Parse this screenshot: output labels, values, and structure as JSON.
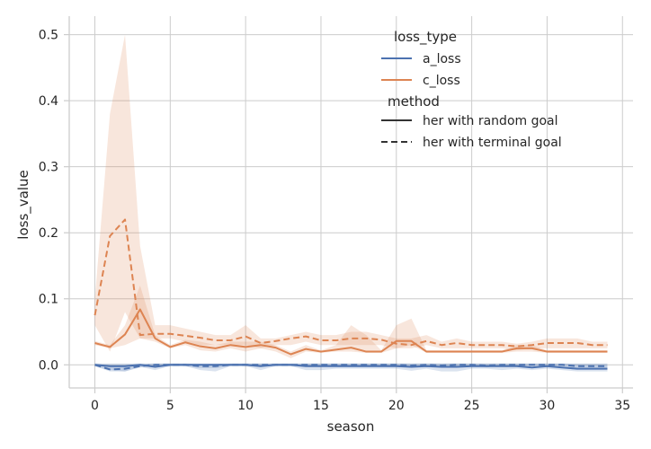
{
  "chart_data": {
    "type": "line",
    "xlabel": "season",
    "ylabel": "loss_value",
    "xlim": [
      -1.7,
      35.7
    ],
    "ylim": [
      -0.035,
      0.528
    ],
    "xticks": [
      0,
      5,
      10,
      15,
      20,
      25,
      30,
      35
    ],
    "yticks": [
      0.0,
      0.1,
      0.2,
      0.3,
      0.4,
      0.5
    ],
    "ytick_labels": [
      "0.0",
      "0.1",
      "0.2",
      "0.3",
      "0.4",
      "0.5"
    ],
    "grid": true,
    "legend_placement": "top-right",
    "legend": {
      "hue_title": "loss_type",
      "hue_entries": [
        {
          "label": "a_loss",
          "color": "#4c72b0"
        },
        {
          "label": "c_loss",
          "color": "#dd8452"
        }
      ],
      "style_title": "method",
      "style_entries": [
        {
          "label": "her with random goal",
          "dash": "solid"
        },
        {
          "label": "her with terminal goal",
          "dash": "dashed"
        }
      ]
    },
    "series": [
      {
        "loss_type": "c_loss",
        "method": "her with terminal goal",
        "color": "#dd8452",
        "dash": "dashed",
        "x": [
          0,
          1,
          2,
          3,
          4,
          5,
          6,
          7,
          8,
          9,
          10,
          11,
          12,
          13,
          14,
          15,
          16,
          17,
          18,
          19,
          20,
          21,
          22,
          23,
          24,
          25,
          26,
          27,
          28,
          29,
          30,
          31,
          32,
          33,
          34
        ],
        "y": [
          0.075,
          0.195,
          0.22,
          0.045,
          0.047,
          0.047,
          0.044,
          0.041,
          0.037,
          0.037,
          0.043,
          0.033,
          0.036,
          0.04,
          0.043,
          0.037,
          0.037,
          0.04,
          0.04,
          0.038,
          0.032,
          0.03,
          0.036,
          0.03,
          0.033,
          0.03,
          0.03,
          0.03,
          0.028,
          0.03,
          0.033,
          0.033,
          0.033,
          0.03,
          0.03
        ],
        "ci_low": [
          0.06,
          0.02,
          0.08,
          0.04,
          0.04,
          0.04,
          0.035,
          0.03,
          0.03,
          0.03,
          0.03,
          0.025,
          0.03,
          0.03,
          0.035,
          0.03,
          0.03,
          0.03,
          0.03,
          0.03,
          0.025,
          0.025,
          0.03,
          0.025,
          0.025,
          0.025,
          0.025,
          0.025,
          0.022,
          0.025,
          0.025,
          0.025,
          0.025,
          0.025,
          0.025
        ],
        "ci_high": [
          0.1,
          0.38,
          0.5,
          0.18,
          0.06,
          0.06,
          0.055,
          0.05,
          0.045,
          0.045,
          0.06,
          0.04,
          0.04,
          0.045,
          0.05,
          0.045,
          0.045,
          0.05,
          0.05,
          0.045,
          0.04,
          0.04,
          0.045,
          0.035,
          0.04,
          0.035,
          0.035,
          0.035,
          0.032,
          0.035,
          0.04,
          0.04,
          0.04,
          0.035,
          0.035
        ]
      },
      {
        "loss_type": "c_loss",
        "method": "her with random goal",
        "color": "#dd8452",
        "dash": "solid",
        "x": [
          0,
          1,
          2,
          3,
          4,
          5,
          6,
          7,
          8,
          9,
          10,
          11,
          12,
          13,
          14,
          15,
          16,
          17,
          18,
          19,
          20,
          21,
          22,
          23,
          24,
          25,
          26,
          27,
          28,
          29,
          30,
          31,
          32,
          33,
          34
        ],
        "y": [
          0.033,
          0.027,
          0.046,
          0.084,
          0.04,
          0.027,
          0.034,
          0.028,
          0.025,
          0.03,
          0.027,
          0.03,
          0.026,
          0.016,
          0.024,
          0.02,
          0.023,
          0.026,
          0.02,
          0.02,
          0.036,
          0.036,
          0.02,
          0.02,
          0.02,
          0.02,
          0.02,
          0.02,
          0.025,
          0.025,
          0.02,
          0.02,
          0.02,
          0.02,
          0.02
        ],
        "ci_low": [
          0.03,
          0.025,
          0.03,
          0.04,
          0.035,
          0.025,
          0.03,
          0.022,
          0.02,
          0.025,
          0.02,
          0.025,
          0.02,
          0.01,
          0.02,
          0.018,
          0.02,
          0.02,
          0.018,
          0.018,
          0.025,
          0.03,
          0.018,
          0.018,
          0.018,
          0.018,
          0.018,
          0.018,
          0.02,
          0.02,
          0.018,
          0.018,
          0.018,
          0.018,
          0.018
        ],
        "ci_high": [
          0.036,
          0.03,
          0.06,
          0.12,
          0.045,
          0.03,
          0.038,
          0.035,
          0.03,
          0.035,
          0.035,
          0.035,
          0.03,
          0.02,
          0.03,
          0.022,
          0.03,
          0.06,
          0.045,
          0.022,
          0.06,
          0.07,
          0.022,
          0.022,
          0.022,
          0.022,
          0.022,
          0.022,
          0.03,
          0.03,
          0.022,
          0.022,
          0.022,
          0.022,
          0.022
        ]
      },
      {
        "loss_type": "a_loss",
        "method": "her with terminal goal",
        "color": "#4c72b0",
        "dash": "dashed",
        "x": [
          0,
          1,
          2,
          3,
          4,
          5,
          6,
          7,
          8,
          9,
          10,
          11,
          12,
          13,
          14,
          15,
          16,
          17,
          18,
          19,
          20,
          21,
          22,
          23,
          24,
          25,
          26,
          27,
          28,
          29,
          30,
          31,
          32,
          33,
          34
        ],
        "y": [
          0,
          -0.007,
          -0.006,
          -0.002,
          0,
          0,
          0,
          -0.002,
          -0.002,
          0,
          0,
          0,
          0,
          0,
          0,
          0,
          0,
          0,
          0,
          0,
          0,
          -0.001,
          0,
          -0.001,
          0,
          0,
          -0.001,
          0,
          0,
          0,
          0,
          0,
          -0.002,
          -0.002,
          -0.002
        ],
        "ci_low": [
          -0.002,
          -0.01,
          -0.01,
          -0.004,
          -0.002,
          -0.002,
          -0.002,
          -0.005,
          -0.005,
          -0.002,
          -0.002,
          -0.002,
          -0.002,
          -0.002,
          -0.002,
          -0.002,
          -0.002,
          -0.002,
          -0.002,
          -0.002,
          -0.002,
          -0.004,
          -0.002,
          -0.004,
          -0.002,
          -0.002,
          -0.004,
          -0.002,
          -0.002,
          -0.002,
          -0.002,
          -0.002,
          -0.005,
          -0.005,
          -0.005
        ],
        "ci_high": [
          0.002,
          -0.002,
          -0.002,
          0.001,
          0.002,
          0.002,
          0.002,
          0.001,
          0.001,
          0.002,
          0.002,
          0.002,
          0.002,
          0.002,
          0.002,
          0.002,
          0.002,
          0.002,
          0.002,
          0.002,
          0.002,
          0.002,
          0.002,
          0.002,
          0.002,
          0.002,
          0.002,
          0.002,
          0.002,
          0.002,
          0.002,
          0.002,
          0.001,
          0.001,
          0.001
        ]
      },
      {
        "loss_type": "a_loss",
        "method": "her with random goal",
        "color": "#4c72b0",
        "dash": "solid",
        "x": [
          0,
          1,
          2,
          3,
          4,
          5,
          6,
          7,
          8,
          9,
          10,
          11,
          12,
          13,
          14,
          15,
          16,
          17,
          18,
          19,
          20,
          21,
          22,
          23,
          24,
          25,
          26,
          27,
          28,
          29,
          30,
          31,
          32,
          33,
          34
        ],
        "y": [
          0,
          -0.002,
          -0.002,
          0,
          -0.003,
          0,
          0,
          0,
          0,
          0,
          0,
          -0.002,
          0,
          0,
          -0.002,
          -0.002,
          -0.002,
          -0.002,
          -0.002,
          -0.002,
          -0.002,
          -0.003,
          -0.002,
          -0.003,
          -0.003,
          -0.002,
          -0.002,
          -0.002,
          -0.002,
          -0.004,
          -0.002,
          -0.004,
          -0.006,
          -0.006,
          -0.006
        ],
        "ci_low": [
          -0.002,
          -0.008,
          -0.01,
          -0.003,
          -0.008,
          -0.002,
          -0.002,
          -0.008,
          -0.01,
          -0.002,
          -0.002,
          -0.008,
          -0.002,
          -0.002,
          -0.008,
          -0.008,
          -0.006,
          -0.006,
          -0.006,
          -0.006,
          -0.006,
          -0.009,
          -0.006,
          -0.01,
          -0.01,
          -0.006,
          -0.006,
          -0.008,
          -0.006,
          -0.008,
          -0.006,
          -0.008,
          -0.01,
          -0.01,
          -0.01
        ],
        "ci_high": [
          0.002,
          0.002,
          0.002,
          0.002,
          0.002,
          0.002,
          0.002,
          0.002,
          0.002,
          0.002,
          0.002,
          0.002,
          0.002,
          0.002,
          0.002,
          0.002,
          0.002,
          0.002,
          0.002,
          0.002,
          0.002,
          0.002,
          0.002,
          0.002,
          0.002,
          0.002,
          0.002,
          0.002,
          0.002,
          0.002,
          0.002,
          0.002,
          0.002,
          0.002,
          0.002
        ]
      }
    ]
  }
}
